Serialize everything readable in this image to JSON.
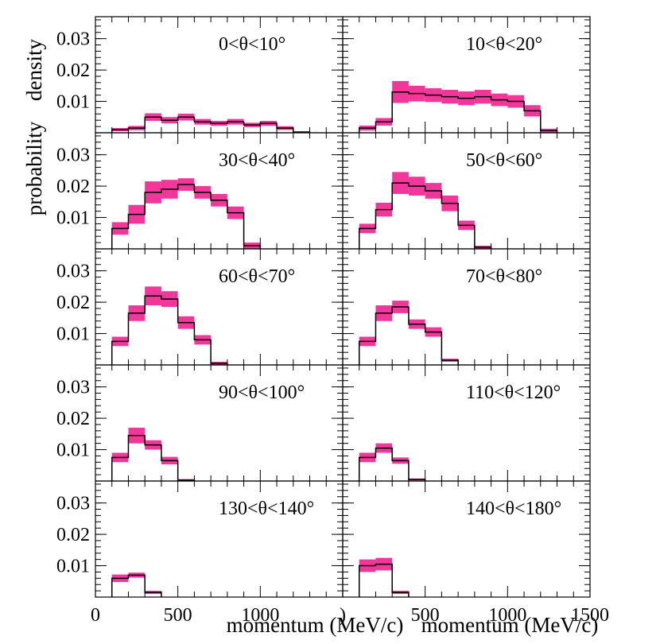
{
  "chart_data": {
    "type": "histogram-grid",
    "rows": 5,
    "cols": 2,
    "xlim": [
      0,
      1500
    ],
    "ylim": [
      0,
      0.037
    ],
    "y_ticks": [
      0.01,
      0.02,
      0.03
    ],
    "y_tick_labels": [
      "0.01",
      "0.02",
      "0.03"
    ],
    "x_ticks": [
      0,
      500,
      1000,
      1500
    ],
    "x_tick_labels_left": [
      "0",
      "500",
      "1000"
    ],
    "x_tick_labels_right": [
      ")",
      "500",
      "1000",
      "1500"
    ],
    "ylabel_lines": [
      "probability",
      "density"
    ],
    "xlabel": "momentum (MeV/c)",
    "band_color": "#f2379b",
    "bin_edges": [
      100,
      200,
      300,
      400,
      500,
      600,
      700,
      800,
      900,
      1000,
      1100,
      1200,
      1300
    ],
    "panels": [
      {
        "title": "0<θ<10°",
        "values": [
          0.001,
          0.0015,
          0.005,
          0.004,
          0.005,
          0.0035,
          0.003,
          0.0035,
          0.0025,
          0.003,
          0.0015,
          0.0002
        ],
        "errors": [
          0.0005,
          0.0007,
          0.0012,
          0.001,
          0.0011,
          0.0009,
          0.0008,
          0.0009,
          0.0007,
          0.0008,
          0.0006,
          0.0003
        ]
      },
      {
        "title": "10<θ<20°",
        "values": [
          0.0015,
          0.0035,
          0.013,
          0.0125,
          0.012,
          0.0115,
          0.011,
          0.0115,
          0.0105,
          0.01,
          0.007,
          0.0007
        ],
        "errors": [
          0.0008,
          0.0012,
          0.0035,
          0.0025,
          0.0022,
          0.0022,
          0.0022,
          0.0022,
          0.002,
          0.002,
          0.0018,
          0.0006
        ]
      },
      {
        "title": "30<θ<40°",
        "values": [
          0.0065,
          0.011,
          0.018,
          0.019,
          0.0205,
          0.018,
          0.0155,
          0.0115,
          0.001
        ],
        "errors": [
          0.002,
          0.003,
          0.0035,
          0.003,
          0.002,
          0.002,
          0.002,
          0.002,
          0.001
        ]
      },
      {
        "title": "50<θ<60°",
        "values": [
          0.0065,
          0.0125,
          0.021,
          0.02,
          0.0185,
          0.0145,
          0.0075,
          0.0005
        ],
        "errors": [
          0.0015,
          0.0022,
          0.0035,
          0.003,
          0.0025,
          0.0025,
          0.0015,
          0.0005
        ]
      },
      {
        "title": "60<θ<70°",
        "values": [
          0.0075,
          0.0165,
          0.022,
          0.021,
          0.0135,
          0.008,
          0.0005
        ],
        "errors": [
          0.0015,
          0.0025,
          0.003,
          0.0025,
          0.002,
          0.0015,
          0.0005
        ]
      },
      {
        "title": "70<θ<80°",
        "values": [
          0.0075,
          0.0165,
          0.0185,
          0.013,
          0.0105,
          0.0015
        ],
        "errors": [
          0.0015,
          0.0025,
          0.002,
          0.0015,
          0.0015,
          0.0005
        ]
      },
      {
        "title": "90<θ<100°",
        "values": [
          0.0075,
          0.0145,
          0.0115,
          0.0065,
          0.0003
        ],
        "errors": [
          0.0015,
          0.0025,
          0.0015,
          0.0012,
          0.0003
        ]
      },
      {
        "title": "110<θ<120°",
        "values": [
          0.0075,
          0.0105,
          0.0065,
          0.0005
        ],
        "errors": [
          0.0015,
          0.0015,
          0.001,
          0.0003
        ]
      },
      {
        "title": "130<θ<140°",
        "values": [
          0.006,
          0.007,
          0.0015
        ],
        "errors": [
          0.0012,
          0.0008,
          0.0005
        ]
      },
      {
        "title": "140<θ<180°",
        "values": [
          0.01,
          0.0105,
          0.0015
        ],
        "errors": [
          0.002,
          0.002,
          0.0005
        ]
      }
    ]
  }
}
